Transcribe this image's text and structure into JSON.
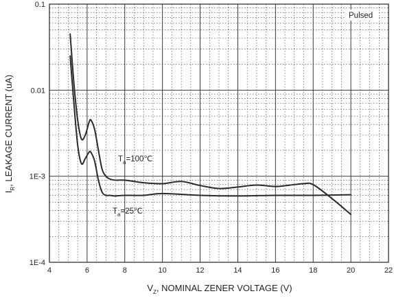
{
  "chart_data": {
    "type": "line",
    "x_scale": "linear",
    "y_scale": "log",
    "xlim": [
      4,
      22
    ],
    "ylim": [
      0.0001,
      0.1
    ],
    "x_ticks": [
      "4",
      "6",
      "8",
      "10",
      "12",
      "14",
      "16",
      "18",
      "20",
      "22"
    ],
    "y_ticks": [
      "1E-4",
      "1E-3",
      "0.01",
      "0.1"
    ],
    "xlabel": {
      "symbol": "V",
      "subscript": "Z",
      "text": ", NOMINAL ZENER VOLTAGE (V)"
    },
    "ylabel": {
      "symbol": "I",
      "subscript": "R",
      "text": ", LEAKAGE CURRENT (uA)"
    },
    "grid": true,
    "annotation": "Pulsed",
    "series": [
      {
        "label_symbol": "T",
        "label_subscript": "a",
        "label_text": "=100℃",
        "x": [
          5.1,
          5.3,
          5.5,
          5.7,
          5.9,
          6.1,
          6.2,
          6.4,
          6.6,
          6.8,
          7.0,
          7.2,
          7.5,
          8.0,
          9.0,
          10.0,
          11.0,
          12.0,
          13.0,
          14.0,
          15.0,
          16.0,
          17.0,
          17.5,
          18.0,
          19.0,
          20.0
        ],
        "y": [
          0.045,
          0.012,
          0.0045,
          0.0027,
          0.003,
          0.0042,
          0.0045,
          0.0035,
          0.002,
          0.0012,
          0.001,
          0.00093,
          0.0009,
          0.0009,
          0.00084,
          0.00082,
          0.00087,
          0.00078,
          0.00072,
          0.00075,
          0.00079,
          0.00076,
          0.0008,
          0.00082,
          0.0008,
          0.00055,
          0.00036
        ]
      },
      {
        "label_symbol": "T",
        "label_subscript": "a",
        "label_text": "=25℃",
        "x": [
          5.1,
          5.3,
          5.5,
          5.7,
          5.9,
          6.1,
          6.2,
          6.4,
          6.6,
          6.8,
          7.0,
          7.2,
          7.5,
          8.0,
          9.0,
          10.0,
          12.0,
          14.0,
          16.0,
          18.0,
          20.0
        ],
        "y": [
          0.025,
          0.007,
          0.0023,
          0.0014,
          0.0016,
          0.0019,
          0.0019,
          0.0015,
          0.0009,
          0.00065,
          0.0006,
          0.0006,
          0.00059,
          0.0006,
          0.0006,
          0.00063,
          0.0006,
          0.00059,
          0.0006,
          0.0006,
          0.00061
        ]
      }
    ]
  }
}
